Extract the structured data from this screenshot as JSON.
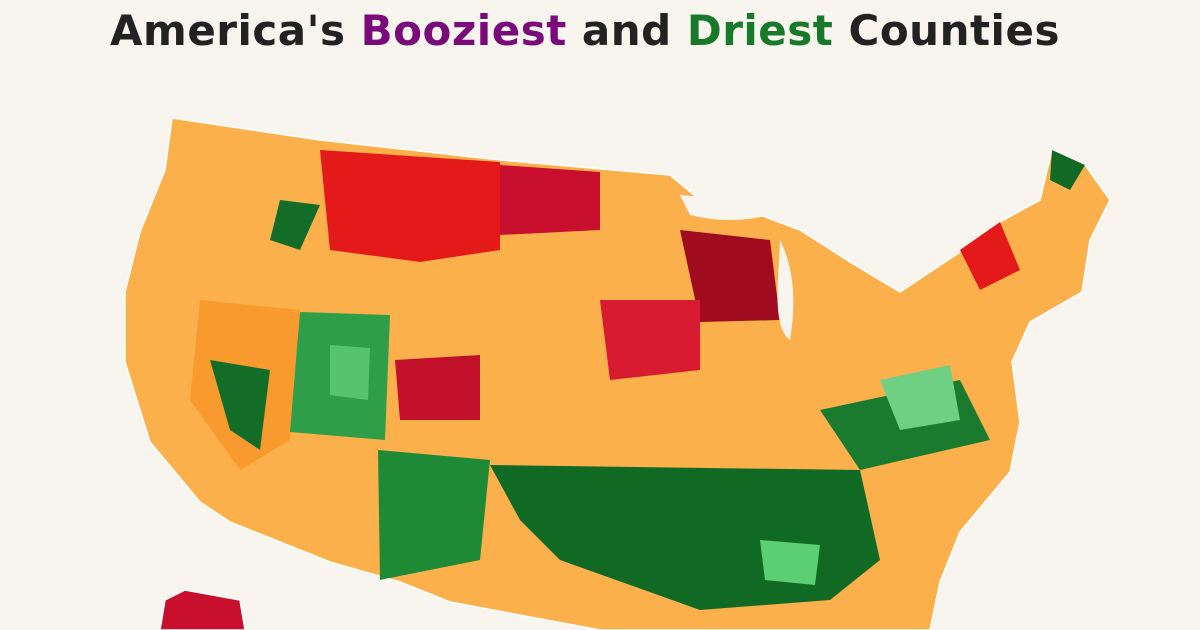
{
  "title": {
    "parts": [
      "America's",
      "Booziest",
      "and",
      "Driest",
      "Counties"
    ]
  }
}
